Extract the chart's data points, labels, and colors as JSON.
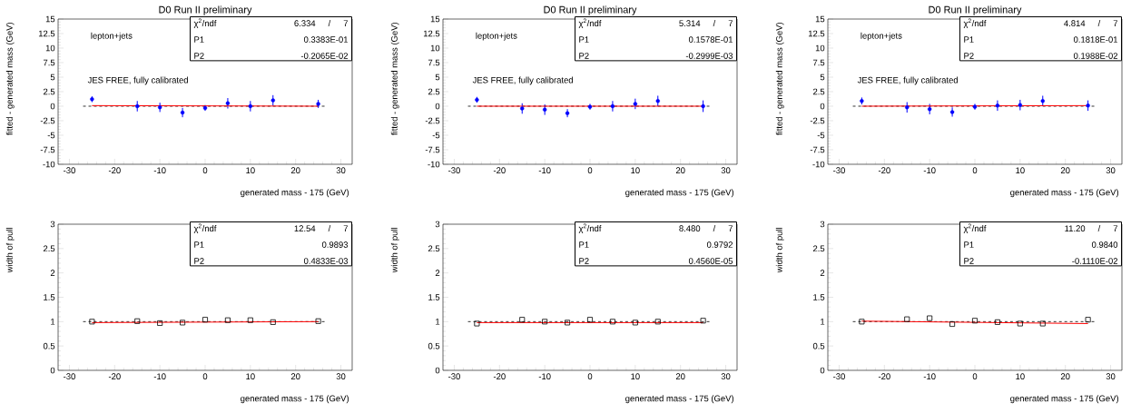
{
  "chart_data": [
    {
      "type": "scatter",
      "title": "D0 Run II preliminary",
      "xlabel": "generated mass - 175 (GeV)",
      "ylabel": "fitted - generated mass (GeV)",
      "xlim": [
        -32.5,
        32.5
      ],
      "xticks": [
        -30,
        -20,
        -10,
        0,
        10,
        20,
        30
      ],
      "ylim": [
        -10,
        15
      ],
      "yticks": [
        -10,
        -7.5,
        -5,
        -2.5,
        0,
        2.5,
        5,
        7.5,
        10,
        12.5,
        15
      ],
      "series": [
        {
          "color": "#0000ff",
          "x": [
            -25,
            -15,
            -10,
            -5,
            0,
            5,
            10,
            15,
            25
          ],
          "values": [
            1.2,
            0,
            -0.2,
            -1.1,
            -0.3,
            0.5,
            0,
            1.0,
            0.4
          ],
          "errors": [
            0.5,
            0.9,
            0.8,
            0.8,
            0.5,
            0.9,
            0.9,
            0.9,
            0.7
          ]
        },
        {
          "type": "line",
          "color": "#ff0000",
          "x": [
            -25,
            25
          ],
          "values": [
            0.1,
            0
          ]
        }
      ],
      "ref_lines": [
        {
          "axis": "y",
          "value": 0,
          "color": "#000000",
          "line_style": "dashed"
        }
      ],
      "annotations": [
        "lepton+jets",
        "JES FREE, fully calibrated",
        "χ$^{2}$/ndf",
        "6.334",
        "/",
        "7",
        "P1",
        "0.3383E-01",
        "P2",
        "-0.2065E-02"
      ]
    },
    {
      "type": "scatter",
      "title": "D0 Run II preliminary",
      "xlabel": "generated mass - 175 (GeV)",
      "ylabel": "fitted - generated mass (GeV)",
      "xlim": [
        -32.5,
        32.5
      ],
      "xticks": [
        -30,
        -20,
        -10,
        0,
        10,
        20,
        30
      ],
      "ylim": [
        -10,
        15
      ],
      "yticks": [
        -10,
        -7.5,
        -5,
        -2.5,
        0,
        2.5,
        5,
        7.5,
        10,
        12.5,
        15
      ],
      "series": [
        {
          "color": "#0000ff",
          "x": [
            -25,
            -15,
            -10,
            -5,
            0,
            5,
            10,
            15,
            25
          ],
          "values": [
            1.1,
            -0.4,
            -0.6,
            -1.2,
            -0.1,
            0,
            0.4,
            0.9,
            0
          ],
          "errors": [
            0.5,
            0.9,
            0.9,
            0.7,
            0.5,
            0.9,
            0.9,
            0.9,
            1.0
          ]
        },
        {
          "type": "line",
          "color": "#ff0000",
          "x": [
            -25,
            25
          ],
          "values": [
            0,
            0
          ]
        }
      ],
      "ref_lines": [
        {
          "axis": "y",
          "value": 0,
          "color": "#000000",
          "line_style": "dashed"
        }
      ],
      "annotations": [
        "lepton+jets",
        "JES FREE, fully calibrated",
        "χ$^{2}$/ndf",
        "5.314",
        "/",
        "7",
        "P1",
        "0.1578E-01",
        "P2",
        "-0.2999E-03"
      ]
    },
    {
      "type": "scatter",
      "title": "D0 Run II preliminary",
      "xlabel": "generated mass - 175 (GeV)",
      "ylabel": "fitted - generated mass (GeV)",
      "xlim": [
        -32.5,
        32.5
      ],
      "xticks": [
        -30,
        -20,
        -10,
        0,
        10,
        20,
        30
      ],
      "ylim": [
        -10,
        15
      ],
      "yticks": [
        -10,
        -7.5,
        -5,
        -2.5,
        0,
        2.5,
        5,
        7.5,
        10,
        12.5,
        15
      ],
      "series": [
        {
          "color": "#0000ff",
          "x": [
            -25,
            -15,
            -10,
            -5,
            0,
            5,
            10,
            15,
            25
          ],
          "values": [
            0.9,
            -0.2,
            -0.5,
            -1.0,
            -0.1,
            0.1,
            0.2,
            0.9,
            0.1
          ],
          "errors": [
            0.6,
            0.9,
            0.9,
            0.8,
            0.5,
            0.9,
            0.9,
            0.9,
            0.9
          ]
        },
        {
          "type": "line",
          "color": "#ff0000",
          "x": [
            -25,
            25
          ],
          "values": [
            0,
            0.1
          ]
        }
      ],
      "ref_lines": [
        {
          "axis": "y",
          "value": 0,
          "color": "#000000",
          "line_style": "dashed"
        }
      ],
      "annotations": [
        "lepton+jets",
        "JES FREE, fully calibrated",
        "χ$^{2}$/ndf",
        "4.814",
        "/",
        "7",
        "P1",
        "0.1818E-01",
        "P2",
        "0.1988E-02"
      ]
    },
    {
      "type": "scatter",
      "xlabel": "generated mass - 175 (GeV)",
      "ylabel": "width of pull",
      "xlim": [
        -32.5,
        32.5
      ],
      "xticks": [
        -30,
        -20,
        -10,
        0,
        10,
        20,
        30
      ],
      "ylim": [
        0,
        3
      ],
      "yticks": [
        0,
        0.5,
        1,
        1.5,
        2,
        2.5,
        3
      ],
      "series": [
        {
          "color": "#000000",
          "marker": "square",
          "x": [
            -25,
            -15,
            -10,
            -5,
            0,
            5,
            10,
            15,
            25
          ],
          "values": [
            1.0,
            1.01,
            0.97,
            0.98,
            1.04,
            1.03,
            1.03,
            0.99,
            1.01
          ]
        },
        {
          "type": "line",
          "color": "#ff0000",
          "x": [
            -25,
            25
          ],
          "values": [
            0.98,
            1.0
          ]
        }
      ],
      "ref_lines": [
        {
          "axis": "y",
          "value": 1,
          "color": "#000000",
          "line_style": "dashed"
        }
      ],
      "annotations": [
        "χ$^{2}$/ndf",
        "12.54",
        "/",
        "7",
        "P1",
        "0.9893",
        "P2",
        "0.4833E-03"
      ]
    },
    {
      "type": "scatter",
      "xlabel": "generated mass - 175 (GeV)",
      "ylabel": "width of pull",
      "xlim": [
        -32.5,
        32.5
      ],
      "xticks": [
        -30,
        -20,
        -10,
        0,
        10,
        20,
        30
      ],
      "ylim": [
        0,
        3
      ],
      "yticks": [
        0,
        0.5,
        1,
        1.5,
        2,
        2.5,
        3
      ],
      "series": [
        {
          "color": "#000000",
          "marker": "square",
          "x": [
            -25,
            -15,
            -10,
            -5,
            0,
            5,
            10,
            15,
            25
          ],
          "values": [
            0.96,
            1.04,
            1.0,
            0.98,
            1.04,
            1.0,
            0.98,
            1.0,
            1.02
          ]
        },
        {
          "type": "line",
          "color": "#ff0000",
          "x": [
            -25,
            25
          ],
          "values": [
            0.98,
            0.98
          ]
        }
      ],
      "ref_lines": [
        {
          "axis": "y",
          "value": 1,
          "color": "#000000",
          "line_style": "dashed"
        }
      ],
      "annotations": [
        "χ$^{2}$/ndf",
        "8.480",
        "/",
        "7",
        "P1",
        "0.9792",
        "P2",
        "0.4560E-05"
      ]
    },
    {
      "type": "scatter",
      "xlabel": "generated mass - 175 (GeV)",
      "ylabel": "width of pull",
      "xlim": [
        -32.5,
        32.5
      ],
      "xticks": [
        -30,
        -20,
        -10,
        0,
        10,
        20,
        30
      ],
      "ylim": [
        0,
        3
      ],
      "yticks": [
        0,
        0.5,
        1,
        1.5,
        2,
        2.5,
        3
      ],
      "series": [
        {
          "color": "#000000",
          "marker": "square",
          "x": [
            -25,
            -15,
            -10,
            -5,
            0,
            5,
            10,
            15,
            25
          ],
          "values": [
            1.0,
            1.05,
            1.07,
            0.95,
            1.02,
            0.99,
            0.96,
            0.96,
            1.04
          ]
        },
        {
          "type": "line",
          "color": "#ff0000",
          "x": [
            -25,
            25
          ],
          "values": [
            1.01,
            0.96
          ]
        }
      ],
      "ref_lines": [
        {
          "axis": "y",
          "value": 1,
          "color": "#000000",
          "line_style": "dashed"
        }
      ],
      "annotations": [
        "χ$^{2}$/ndf",
        "11.20",
        "/",
        "7",
        "P1",
        "0.9840",
        "P2",
        "-0.1110E-02"
      ]
    }
  ]
}
